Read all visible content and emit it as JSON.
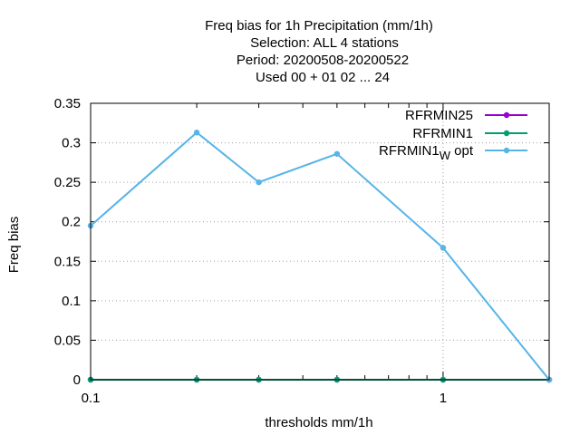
{
  "chart_data": {
    "type": "line",
    "title_lines": [
      "Freq bias  for 1h Precipitation (mm/1h)",
      "Selection: ALL      4 stations",
      "Period: 20200508-20200522",
      "Used  00 + 01 02 ... 24"
    ],
    "xlabel": "thresholds mm/1h",
    "ylabel": "Freq bias",
    "x_scale": "log",
    "xlim": [
      0.1,
      2.0
    ],
    "ylim": [
      0,
      0.35
    ],
    "x_ticks": [
      0.1,
      1
    ],
    "x_tick_labels": [
      "0.1",
      "1"
    ],
    "y_ticks": [
      0,
      0.05,
      0.1,
      0.15,
      0.2,
      0.25,
      0.3,
      0.35
    ],
    "y_tick_labels": [
      "0",
      "0.05",
      "0.1",
      "0.15",
      "0.2",
      "0.25",
      "0.3",
      "0.35"
    ],
    "grid": true,
    "legend_position": "top-right",
    "x": [
      0.1,
      0.2,
      0.3,
      0.5,
      1.0,
      2.0
    ],
    "series": [
      {
        "name": "RFRMIN25",
        "color": "#9400d3",
        "values": [
          0,
          0,
          0,
          0,
          0,
          0
        ]
      },
      {
        "name": "RFRMIN1",
        "color": "#009e73",
        "values": [
          0,
          0,
          0,
          0,
          0,
          0
        ]
      },
      {
        "name": "RFRMIN1",
        "name_subscript": "W",
        "name_suffix": "opt",
        "color": "#56b4e9",
        "values": [
          0.195,
          0.313,
          0.25,
          0.286,
          0.167,
          0.0
        ]
      }
    ]
  }
}
